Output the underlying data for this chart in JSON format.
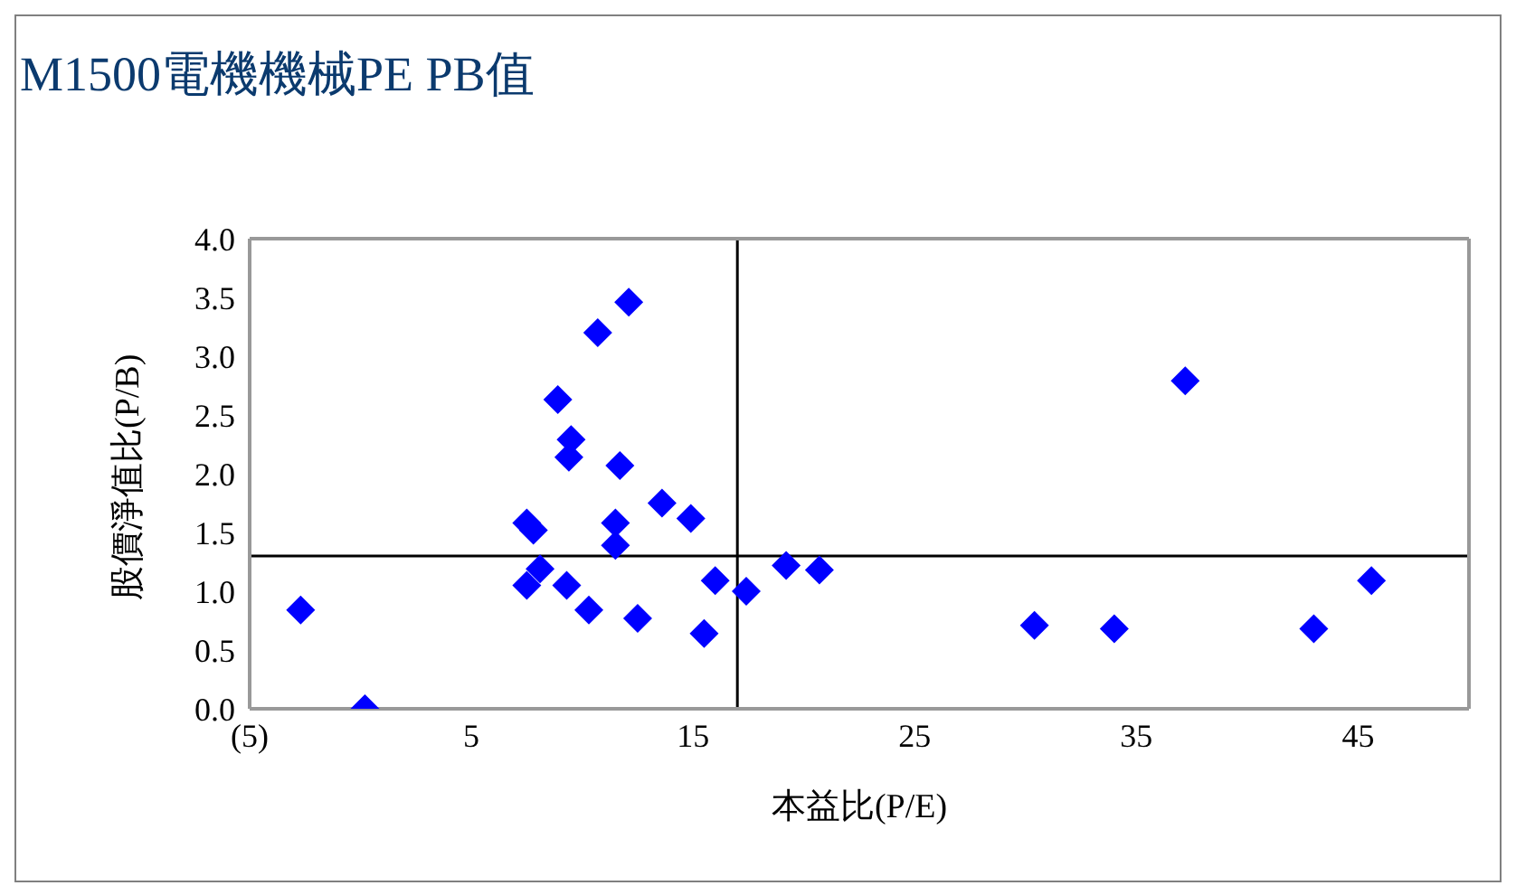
{
  "chart_data": {
    "type": "scatter",
    "title": "M1500電機機械PE PB值",
    "xlabel": "本益比(P/E)",
    "ylabel": "股價淨值比(P/B)",
    "x": [
      -2.7,
      0.2,
      12.1,
      10.7,
      8.9,
      9.5,
      9.4,
      11.7,
      13.6,
      14.9,
      7.5,
      7.8,
      11.5,
      11.5,
      8.1,
      7.5,
      9.3,
      10.3,
      12.5,
      15.5,
      16.0,
      17.4,
      19.2,
      20.7,
      30.4,
      34.0,
      37.2,
      43.0,
      45.6
    ],
    "series": [
      {
        "color": "#0000ff",
        "values": [
          0.84,
          0.0,
          3.46,
          3.2,
          2.63,
          2.29,
          2.14,
          2.07,
          1.75,
          1.62,
          1.58,
          1.52,
          1.58,
          1.39,
          1.19,
          1.05,
          1.05,
          0.84,
          0.77,
          0.64,
          1.09,
          1.0,
          1.22,
          1.18,
          0.71,
          0.68,
          2.79,
          0.68,
          1.09
        ]
      }
    ],
    "xlim": [
      -5,
      50
    ],
    "xticks": [
      {
        "value": -5,
        "label": "(5)"
      },
      5,
      15,
      25,
      35,
      45
    ],
    "ylim": [
      0,
      4
    ],
    "yticks": [
      {
        "value": 0,
        "label": "0.0"
      },
      {
        "value": 0.5,
        "label": "0.5"
      },
      {
        "value": 1,
        "label": "1.0"
      },
      {
        "value": 1.5,
        "label": "1.5"
      },
      {
        "value": 2,
        "label": "2.0"
      },
      {
        "value": 2.5,
        "label": "2.5"
      },
      {
        "value": 3,
        "label": "3.0"
      },
      {
        "value": 3.5,
        "label": "3.5"
      },
      {
        "value": 4,
        "label": "4.0"
      }
    ],
    "ref_lines": [
      {
        "axis": "x",
        "value": 17,
        "color": "#000000"
      },
      {
        "axis": "y",
        "value": 1.3,
        "color": "#000000"
      }
    ],
    "marker": "diamond",
    "grid": false,
    "legend": false
  }
}
